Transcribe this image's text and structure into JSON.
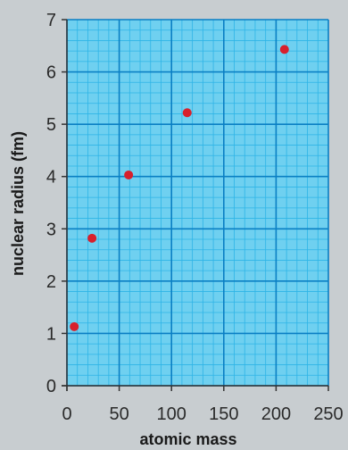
{
  "chart_data": {
    "type": "scatter",
    "title": "",
    "xlabel": "atomic mass",
    "ylabel": "nuclear radius (fm)",
    "xlim": [
      0,
      250
    ],
    "ylim": [
      0,
      7
    ],
    "x_ticks": [
      "0",
      "50",
      "100",
      "150",
      "200",
      "250"
    ],
    "y_ticks": [
      "0",
      "1",
      "2",
      "3",
      "4",
      "5",
      "6",
      "7"
    ],
    "grid": true,
    "points": [
      {
        "x": 7,
        "y": 1.13
      },
      {
        "x": 24,
        "y": 2.82
      },
      {
        "x": 59,
        "y": 4.03
      },
      {
        "x": 115,
        "y": 5.22
      },
      {
        "x": 208,
        "y": 6.43
      }
    ],
    "colors": {
      "background": "#c8cdd0",
      "plot_area": "#6fd0f0",
      "minor_grid": "#2eb4e6",
      "major_grid": "#0a7fc4",
      "axis": "#333333",
      "point": "#d8202c"
    }
  }
}
